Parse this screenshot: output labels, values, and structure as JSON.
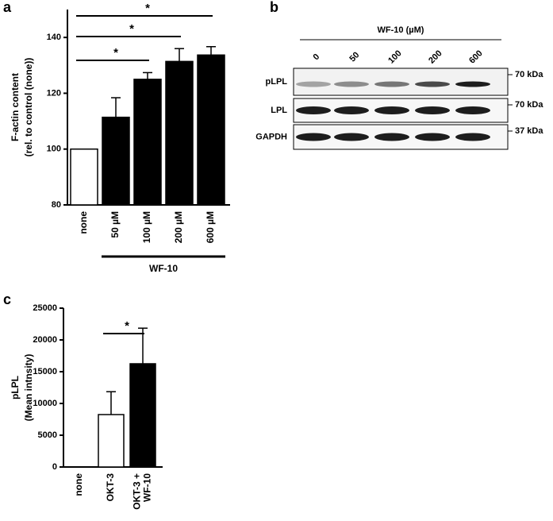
{
  "panel_labels": [
    "a",
    "b",
    "c"
  ],
  "chart_data": [
    {
      "type": "bar",
      "y_label": [
        "F-actin content",
        "(rel. to control (none))"
      ],
      "categories": [
        "none",
        "50 µM",
        "100 µM",
        "200 µM",
        "600 µM"
      ],
      "values": [
        100,
        111.4,
        125,
        131.4,
        133.7
      ],
      "errors": [
        0,
        7,
        2.4,
        4.6,
        3
      ],
      "colors": [
        "#ffffff",
        "#000000",
        "#000000",
        "#000000",
        "#000000"
      ],
      "ylim": [
        80,
        150
      ],
      "yticks": [
        80,
        100,
        120,
        140
      ],
      "group_label": {
        "text": "WF-10",
        "span": [
          1,
          4
        ]
      },
      "annotations": [
        {
          "text": "*",
          "span": [
            0,
            2
          ]
        },
        {
          "text": "*",
          "span": [
            0,
            3
          ]
        },
        {
          "text": "*",
          "span": [
            0,
            4
          ]
        }
      ]
    },
    {
      "type": "bar",
      "y_label": [
        "pLPL",
        "(Mean intnsity)"
      ],
      "categories": [
        "none",
        "OKT-3",
        [
          "OKT-3 +",
          "WF-10"
        ]
      ],
      "values": [
        0,
        8250,
        16250
      ],
      "errors": [
        0,
        3600,
        5600
      ],
      "colors": [
        "#ffffff",
        "#ffffff",
        "#000000"
      ],
      "ylim": [
        0,
        25000
      ],
      "yticks": [
        0,
        5000,
        10000,
        15000,
        20000,
        25000
      ],
      "annotations": [
        {
          "text": "*",
          "span": [
            1,
            2
          ]
        }
      ]
    }
  ],
  "blot": {
    "title": "WF-10 (µM)",
    "lanes": [
      "0",
      "50",
      "100",
      "200",
      "600"
    ],
    "rows": [
      {
        "label": "pLPL",
        "size": "70 kDa"
      },
      {
        "label": "LPL",
        "size": "70 kDa"
      },
      {
        "label": "GAPDH",
        "size": "37 kDa"
      }
    ]
  }
}
